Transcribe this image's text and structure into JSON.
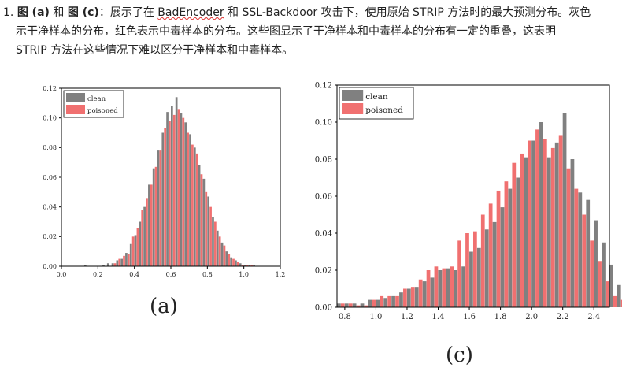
{
  "paragraph": {
    "number": "1.",
    "label_a": "图 (a)",
    "and": "和",
    "label_c": "图 (c)",
    "colon": "：",
    "text1": "展示了在 ",
    "badencoder": "BadEncoder",
    "text2": " 和 SSL-Backdoor 攻击下，使用原始 STRIP 方法时的最大预测分布。灰色",
    "line2": "示干净样本的分布，红色表示中毒样本的分布。这些图显示了干净样本和中毒样本的分布有一定的重叠，这表明",
    "line3": "STRIP 方法在这些情况下难以区分干净样本和中毒样本。"
  },
  "colors": {
    "clean": "#808080",
    "poisoned": "#f07070"
  },
  "chart_data": [
    {
      "type": "bar",
      "panel": "(a)",
      "xlim": [
        0.0,
        1.2
      ],
      "ylim": [
        0.0,
        0.12
      ],
      "x_ticks": [
        "0.0",
        "0.2",
        "0.4",
        "0.6",
        "0.8",
        "1.0",
        "1.2"
      ],
      "y_ticks": [
        "0.00",
        "0.02",
        "0.04",
        "0.06",
        "0.08",
        "0.10",
        "0.12"
      ],
      "legend": [
        "clean",
        "poisoned"
      ],
      "legend_position": "top-left",
      "bin_start": 0.0,
      "bin_width": 0.025,
      "series": [
        {
          "name": "clean",
          "values": [
            0,
            0,
            0,
            0,
            0,
            0.001,
            0,
            0,
            0,
            0.001,
            0.002,
            0.002,
            0.004,
            0.005,
            0.009,
            0.015,
            0.021,
            0.03,
            0.04,
            0.055,
            0.066,
            0.078,
            0.09,
            0.104,
            0.108,
            0.114,
            0.103,
            0.097,
            0.089,
            0.08,
            0.068,
            0.059,
            0.047,
            0.033,
            0.024,
            0.016,
            0.01,
            0.006,
            0.004,
            0.002,
            0.001,
            0.001,
            0.001,
            0,
            0,
            0,
            0,
            0
          ]
        },
        {
          "name": "poisoned",
          "values": [
            0,
            0,
            0,
            0,
            0,
            0,
            0,
            0,
            0,
            0,
            0,
            0.002,
            0.005,
            0.007,
            0.008,
            0.02,
            0.026,
            0.038,
            0.046,
            0.055,
            0.067,
            0.078,
            0.093,
            0.098,
            0.102,
            0.106,
            0.1,
            0.09,
            0.082,
            0.076,
            0.062,
            0.05,
            0.04,
            0.03,
            0.02,
            0.014,
            0.008,
            0.005,
            0.003,
            0.001,
            0.001,
            0.001,
            0,
            0,
            0,
            0,
            0,
            0
          ]
        }
      ]
    },
    {
      "type": "bar",
      "panel": "(c)",
      "xlim": [
        0.75,
        2.5
      ],
      "ylim": [
        0.0,
        0.12
      ],
      "x_ticks": [
        "0.8",
        "1.0",
        "1.2",
        "1.4",
        "1.6",
        "1.8",
        "2.0",
        "2.2",
        "2.4"
      ],
      "y_ticks": [
        "0.00",
        "0.02",
        "0.04",
        "0.06",
        "0.08",
        "0.10",
        "0.12"
      ],
      "legend": [
        "clean",
        "poisoned"
      ],
      "legend_position": "top-left",
      "bin_start": 0.75,
      "bin_width": 0.05,
      "series": [
        {
          "name": "clean",
          "values": [
            0.002,
            0.002,
            0.002,
            0.002,
            0.004,
            0.004,
            0.005,
            0.006,
            0.008,
            0.01,
            0.011,
            0.014,
            0.016,
            0.02,
            0.021,
            0.02,
            0.022,
            0.03,
            0.032,
            0.042,
            0.046,
            0.054,
            0.064,
            0.07,
            0.081,
            0.09,
            0.1,
            0.081,
            0.089,
            0.105,
            0.08,
            0.062,
            0.058,
            0.047,
            0.035,
            0.023,
            0.012,
            0.006,
            0.003,
            0.005
          ]
        },
        {
          "name": "poisoned",
          "values": [
            0.002,
            0.002,
            0.001,
            0.001,
            0.004,
            0.006,
            0.006,
            0.006,
            0.01,
            0.011,
            0.015,
            0.02,
            0.022,
            0.021,
            0.022,
            0.036,
            0.04,
            0.041,
            0.05,
            0.056,
            0.063,
            0.068,
            0.078,
            0.083,
            0.09,
            0.096,
            0.091,
            0.086,
            0.093,
            0.075,
            0.064,
            0.05,
            0.036,
            0.025,
            0.014,
            0.006,
            0.004,
            0.001,
            0.0,
            0.0
          ]
        }
      ]
    }
  ],
  "captions": {
    "a": "(a)",
    "c": "(c)"
  }
}
